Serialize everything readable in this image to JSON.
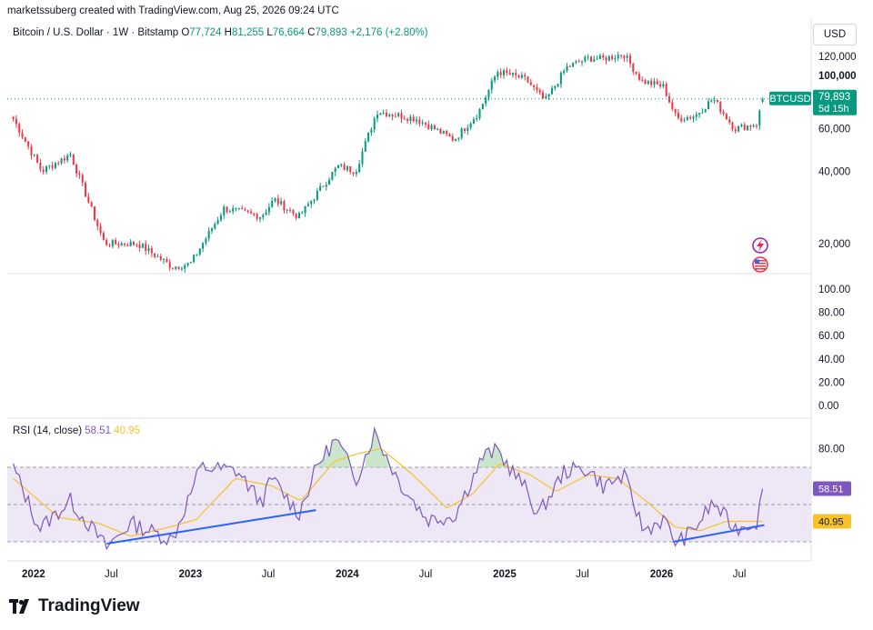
{
  "header": {
    "created_by": "marketssuberg created with TradingView.com, Aug 25, 2026 09:24 UTC",
    "symbol_line": "Bitcoin / U.S. Dollar · 1W · Bitstamp",
    "open_label": "O",
    "open": "77,724",
    "high_label": "H",
    "high": "81,255",
    "low_label": "L",
    "low": "76,664",
    "close_label": "C",
    "close": "79,893",
    "change": "+2,176 (+2.80%)"
  },
  "currency_button": "USD",
  "price_tag": {
    "symbol": "BTCUSD",
    "price": "79,893",
    "countdown": "5d 15h"
  },
  "rsi_header": {
    "title": "RSI (14, close)",
    "rsi_value": "58.51",
    "ma_value": "40.95"
  },
  "rsi_tags": {
    "rsi": "58.51",
    "ma": "40.95"
  },
  "brand": "TradingView",
  "colors": {
    "up": "#089981",
    "down": "#f23645",
    "rsi_line": "#7e57c2",
    "rsi_ma": "#f7c22a",
    "trendline": "#2962ff",
    "band_fill": "#ede7f6",
    "last_price": "#089981"
  },
  "chart_data": [
    {
      "type": "candlestick",
      "title": "Bitcoin / U.S. Dollar · 1W · Bitstamp",
      "y_scale": "log",
      "y_ticks": [
        20000,
        40000,
        60000,
        100000,
        120000
      ],
      "y_tick_labels": [
        "20,000",
        "40,000",
        "60,000",
        "100,000",
        "120,000"
      ],
      "x_tick_labels": [
        "2022",
        "Jul",
        "2023",
        "Jul",
        "2024",
        "Jul",
        "2025",
        "Jul",
        "2026",
        "Jul"
      ],
      "last_price": 79893,
      "path_keypoints": [
        {
          "date": "2021-11-15",
          "close": 66000
        },
        {
          "date": "2022-01-20",
          "close": 40000
        },
        {
          "date": "2022-03-28",
          "close": 47000
        },
        {
          "date": "2022-06-15",
          "close": 20000
        },
        {
          "date": "2022-09-01",
          "close": 20000
        },
        {
          "date": "2022-11-20",
          "close": 16000
        },
        {
          "date": "2023-01-01",
          "close": 16500
        },
        {
          "date": "2023-03-20",
          "close": 28000
        },
        {
          "date": "2023-06-15",
          "close": 26000
        },
        {
          "date": "2023-07-15",
          "close": 30500
        },
        {
          "date": "2023-09-10",
          "close": 25800
        },
        {
          "date": "2023-12-10",
          "close": 42000
        },
        {
          "date": "2024-01-20",
          "close": 40000
        },
        {
          "date": "2024-03-10",
          "close": 71000
        },
        {
          "date": "2024-06-10",
          "close": 66000
        },
        {
          "date": "2024-09-05",
          "close": 54000
        },
        {
          "date": "2024-11-01",
          "close": 70000
        },
        {
          "date": "2024-12-15",
          "close": 104000
        },
        {
          "date": "2025-02-20",
          "close": 96000
        },
        {
          "date": "2025-04-05",
          "close": 78000
        },
        {
          "date": "2025-05-25",
          "close": 108000
        },
        {
          "date": "2025-07-15",
          "close": 118000
        },
        {
          "date": "2025-08-15",
          "close": 117000
        },
        {
          "date": "2025-10-05",
          "close": 123000
        },
        {
          "date": "2025-11-15",
          "close": 95000
        },
        {
          "date": "2026-01-05",
          "close": 90000
        },
        {
          "date": "2026-02-05",
          "close": 66000
        },
        {
          "date": "2026-03-20",
          "close": 68000
        },
        {
          "date": "2026-05-01",
          "close": 80000
        },
        {
          "date": "2026-06-20",
          "close": 60000
        },
        {
          "date": "2026-08-10",
          "close": 63000
        },
        {
          "date": "2026-08-25",
          "close": 79893
        }
      ]
    },
    {
      "type": "line",
      "title": "RSI (14, close)",
      "y_tick_labels": [
        "0.00",
        "20.00",
        "40.00",
        "60.00",
        "80.00",
        "100.00"
      ],
      "band": [
        30,
        70
      ],
      "mid_line": 50,
      "series": [
        {
          "name": "RSI",
          "last": 58.51,
          "points": [
            {
              "date": "2021-11-15",
              "value": 70
            },
            {
              "date": "2022-01-15",
              "value": 37
            },
            {
              "date": "2022-03-28",
              "value": 52
            },
            {
              "date": "2022-06-20",
              "value": 27
            },
            {
              "date": "2022-08-15",
              "value": 40
            },
            {
              "date": "2022-11-20",
              "value": 31
            },
            {
              "date": "2023-01-25",
              "value": 70
            },
            {
              "date": "2023-04-20",
              "value": 68
            },
            {
              "date": "2023-06-15",
              "value": 51
            },
            {
              "date": "2023-07-10",
              "value": 64
            },
            {
              "date": "2023-09-10",
              "value": 45
            },
            {
              "date": "2023-10-25",
              "value": 72
            },
            {
              "date": "2023-12-05",
              "value": 85
            },
            {
              "date": "2024-01-22",
              "value": 64
            },
            {
              "date": "2024-03-05",
              "value": 89
            },
            {
              "date": "2024-05-01",
              "value": 62
            },
            {
              "date": "2024-07-05",
              "value": 42
            },
            {
              "date": "2024-09-06",
              "value": 44
            },
            {
              "date": "2024-11-12",
              "value": 76
            },
            {
              "date": "2024-12-15",
              "value": 79
            },
            {
              "date": "2025-02-20",
              "value": 58
            },
            {
              "date": "2025-03-20",
              "value": 44
            },
            {
              "date": "2025-05-20",
              "value": 68
            },
            {
              "date": "2025-07-14",
              "value": 69
            },
            {
              "date": "2025-08-18",
              "value": 60
            },
            {
              "date": "2025-10-06",
              "value": 65
            },
            {
              "date": "2025-11-20",
              "value": 36
            },
            {
              "date": "2026-01-05",
              "value": 42
            },
            {
              "date": "2026-02-05",
              "value": 29
            },
            {
              "date": "2026-03-15",
              "value": 36
            },
            {
              "date": "2026-05-01",
              "value": 51
            },
            {
              "date": "2026-06-20",
              "value": 37
            },
            {
              "date": "2026-08-10",
              "value": 41
            },
            {
              "date": "2026-08-25",
              "value": 58.51
            }
          ]
        },
        {
          "name": "RSI-based MA",
          "last": 40.95,
          "points": [
            {
              "date": "2021-11-15",
              "value": 64
            },
            {
              "date": "2022-03-01",
              "value": 43
            },
            {
              "date": "2022-06-01",
              "value": 40
            },
            {
              "date": "2022-08-15",
              "value": 33
            },
            {
              "date": "2022-11-15",
              "value": 38
            },
            {
              "date": "2023-01-15",
              "value": 42
            },
            {
              "date": "2023-04-15",
              "value": 64
            },
            {
              "date": "2023-07-10",
              "value": 60
            },
            {
              "date": "2023-09-15",
              "value": 52
            },
            {
              "date": "2023-12-01",
              "value": 73
            },
            {
              "date": "2024-01-20",
              "value": 77
            },
            {
              "date": "2024-03-20",
              "value": 80
            },
            {
              "date": "2024-06-01",
              "value": 66
            },
            {
              "date": "2024-08-20",
              "value": 48
            },
            {
              "date": "2024-10-20",
              "value": 56
            },
            {
              "date": "2024-12-20",
              "value": 72
            },
            {
              "date": "2025-03-01",
              "value": 66
            },
            {
              "date": "2025-05-01",
              "value": 57
            },
            {
              "date": "2025-07-15",
              "value": 66
            },
            {
              "date": "2025-09-20",
              "value": 64
            },
            {
              "date": "2025-12-01",
              "value": 51
            },
            {
              "date": "2026-02-01",
              "value": 38
            },
            {
              "date": "2026-04-01",
              "value": 36
            },
            {
              "date": "2026-06-01",
              "value": 41
            },
            {
              "date": "2026-08-25",
              "value": 40.95
            }
          ]
        }
      ],
      "trendlines": [
        {
          "from": {
            "date": "2022-06-20",
            "value": 29
          },
          "to": {
            "date": "2023-10-20",
            "value": 47
          }
        },
        {
          "from": {
            "date": "2026-01-28",
            "value": 30
          },
          "to": {
            "date": "2026-08-28",
            "value": 39
          }
        }
      ]
    }
  ]
}
